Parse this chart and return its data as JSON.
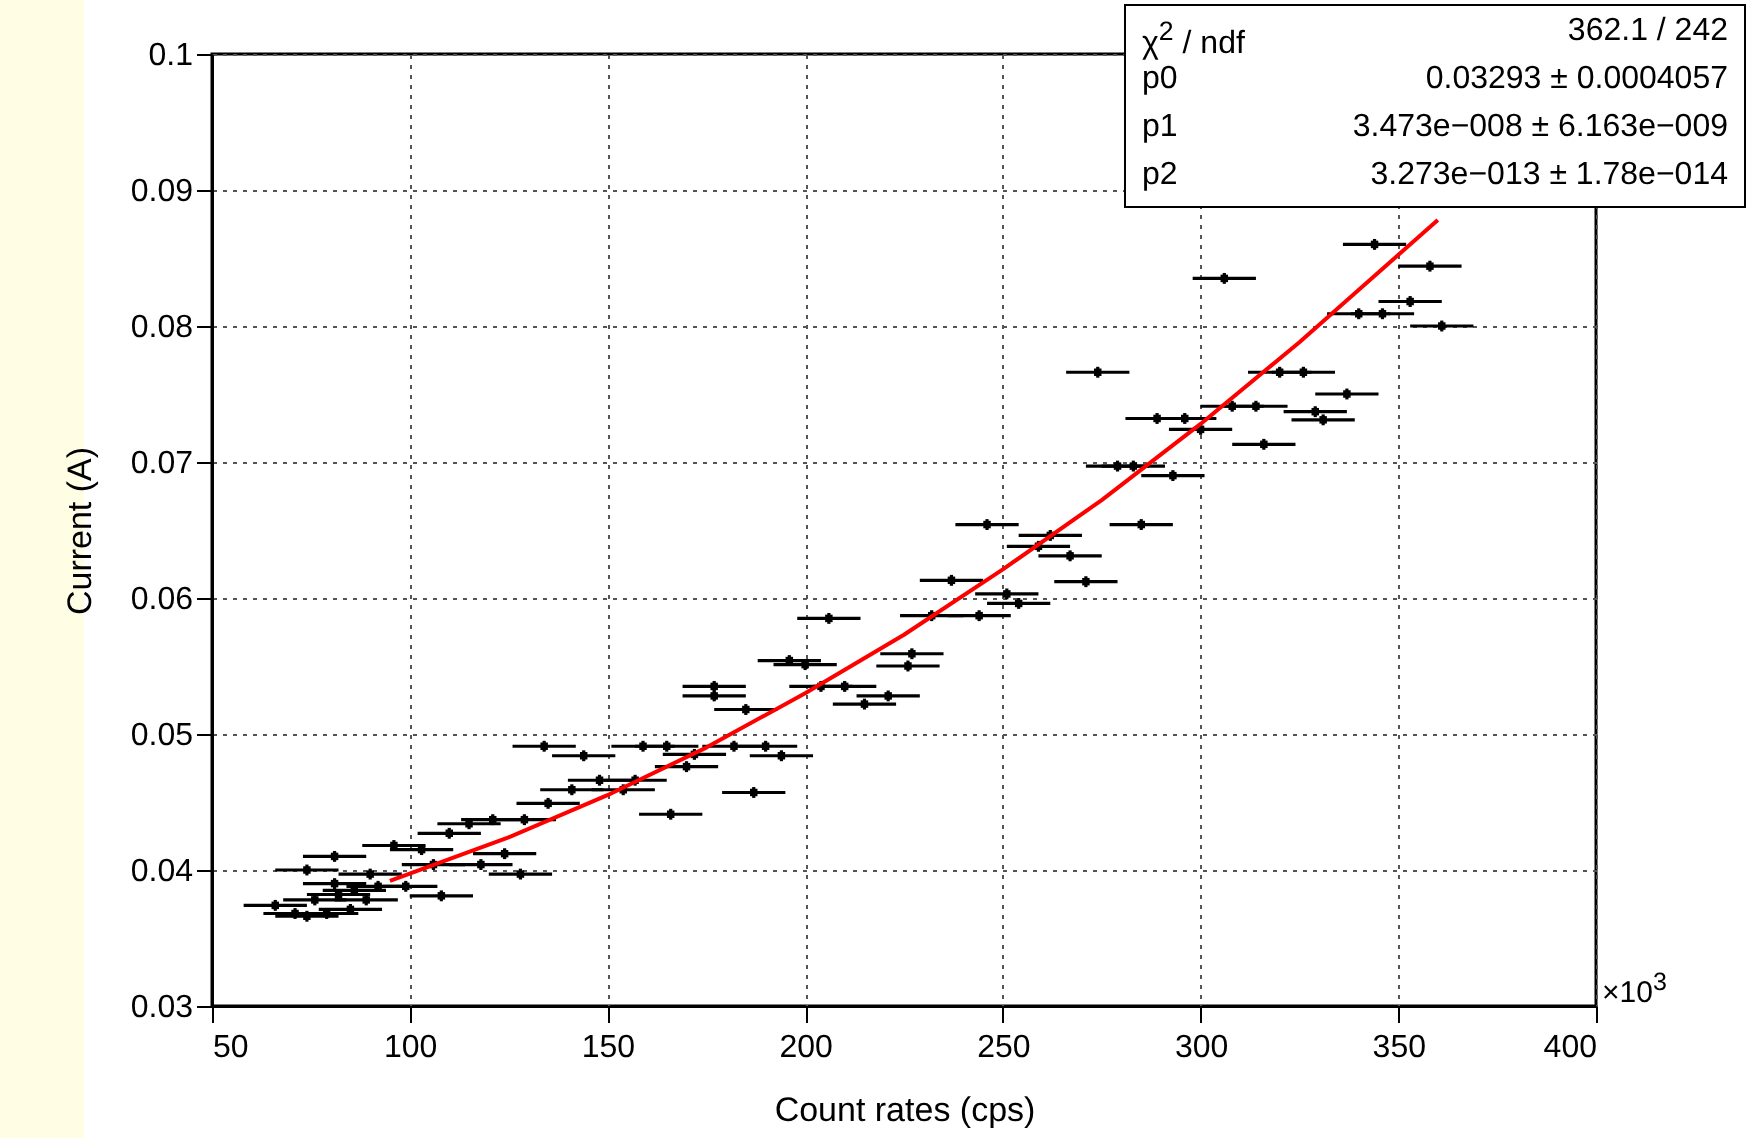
{
  "chart_data": {
    "type": "scatter",
    "xlabel": "Count rates (cps)",
    "ylabel": "Current (A)",
    "xlim": [
      50,
      400
    ],
    "xticks": [
      50,
      100,
      150,
      200,
      250,
      300,
      350,
      400
    ],
    "ylim": [
      0.03,
      0.1
    ],
    "yticks": [
      0.03,
      0.04,
      0.05,
      0.06,
      0.07,
      0.08,
      0.09,
      0.1
    ],
    "grid": true,
    "annotations": [
      "χ$^{2}$ / ndf",
      "362.1 / 242",
      "p0",
      "0.03293 ± 0.0004057",
      "p1",
      "3.473e−008 ± 6.163e−009",
      "p2",
      "3.273e−013 ± 1.78e−014",
      "×10$^{3}$"
    ],
    "series": [
      {
        "color": "#000000",
        "marker": "square",
        "x": [
          344,
          358,
          306,
          353,
          346,
          340,
          361,
          274,
          320,
          326,
          337,
          308,
          314,
          329,
          331,
          289,
          296,
          300,
          316,
          279,
          283,
          293,
          285,
          246,
          262,
          259,
          267,
          271,
          237,
          251,
          254,
          244,
          232,
          206,
          196,
          200,
          204,
          210,
          215,
          221,
          227,
          226,
          177,
          177,
          185,
          134,
          144,
          165,
          159,
          172,
          182,
          190,
          194,
          170,
          187,
          166,
          148,
          141,
          135,
          154,
          129,
          157,
          115,
          121,
          110,
          96,
          103,
          81,
          124,
          106,
          118,
          128,
          74,
          90,
          99,
          108,
          86,
          66,
          71,
          76,
          79,
          82,
          85,
          74,
          89,
          81,
          92
        ],
        "values": [
          0.086,
          0.0844,
          0.0835,
          0.0818,
          0.0809,
          0.0809,
          0.08,
          0.0766,
          0.0766,
          0.0766,
          0.075,
          0.0741,
          0.0741,
          0.0737,
          0.0731,
          0.0732,
          0.0732,
          0.0724,
          0.0713,
          0.0697,
          0.0697,
          0.069,
          0.0654,
          0.0654,
          0.0646,
          0.0638,
          0.0631,
          0.0612,
          0.0613,
          0.0603,
          0.0596,
          0.0587,
          0.0587,
          0.0585,
          0.0554,
          0.0551,
          0.0535,
          0.0535,
          0.0522,
          0.0528,
          0.0559,
          0.055,
          0.0535,
          0.0528,
          0.0518,
          0.0491,
          0.0484,
          0.0491,
          0.0491,
          0.0485,
          0.0491,
          0.0491,
          0.0484,
          0.0476,
          0.0457,
          0.0441,
          0.0466,
          0.0459,
          0.0449,
          0.0459,
          0.0437,
          0.0466,
          0.0434,
          0.0437,
          0.0427,
          0.0418,
          0.0415,
          0.041,
          0.0412,
          0.0404,
          0.0404,
          0.0397,
          0.04,
          0.0397,
          0.0388,
          0.0381,
          0.0385,
          0.0374,
          0.0368,
          0.0378,
          0.0368,
          0.0382,
          0.0371,
          0.0366,
          0.0378,
          0.039,
          0.0388
        ],
        "errors": [
          0.0004,
          0.0004,
          0.0004,
          0.0004,
          0.0004,
          0.0004,
          0.0004,
          0.0004,
          0.0004,
          0.0004,
          0.0004,
          0.0004,
          0.0004,
          0.0004,
          0.0004,
          0.0004,
          0.0004,
          0.0004,
          0.0004,
          0.0004,
          0.0004,
          0.0004,
          0.0004,
          0.0004,
          0.0004,
          0.0004,
          0.0004,
          0.0004,
          0.0004,
          0.0004,
          0.0004,
          0.0004,
          0.0004,
          0.0004,
          0.0004,
          0.0004,
          0.0004,
          0.0004,
          0.0004,
          0.0004,
          0.0004,
          0.0004,
          0.0004,
          0.0004,
          0.0004,
          0.0004,
          0.0004,
          0.0004,
          0.0004,
          0.0004,
          0.0004,
          0.0004,
          0.0004,
          0.0004,
          0.0004,
          0.0004,
          0.0004,
          0.0004,
          0.0004,
          0.0004,
          0.0004,
          0.0004,
          0.0004,
          0.0004,
          0.0004,
          0.0004,
          0.0004,
          0.0004,
          0.0004,
          0.0004,
          0.0004,
          0.0004,
          0.0004,
          0.0004,
          0.0004,
          0.0004,
          0.0004,
          0.0004,
          0.0004,
          0.0004,
          0.0004,
          0.0004,
          0.0004,
          0.0004,
          0.0004,
          0.0004,
          0.0004
        ],
        "xerrors": [
          8,
          8,
          8,
          8,
          8,
          8,
          8,
          8,
          8,
          8,
          8,
          8,
          8,
          8,
          8,
          8,
          8,
          8,
          8,
          8,
          8,
          8,
          8,
          8,
          8,
          8,
          8,
          8,
          8,
          8,
          8,
          8,
          8,
          8,
          8,
          8,
          8,
          8,
          8,
          8,
          8,
          8,
          8,
          8,
          8,
          8,
          8,
          8,
          8,
          8,
          8,
          8,
          8,
          8,
          8,
          8,
          8,
          8,
          8,
          8,
          8,
          8,
          8,
          8,
          8,
          8,
          8,
          8,
          8,
          8,
          8,
          8,
          8,
          8,
          8,
          8,
          8,
          8,
          8,
          8,
          8,
          8,
          8,
          8,
          8,
          8,
          8
        ]
      },
      {
        "type": "line",
        "color": "#ff0000",
        "x": [
          95,
          125,
          150,
          175,
          200,
          225,
          250,
          275,
          300,
          325,
          360
        ],
        "values": [
          0.0392,
          0.0424,
          0.0455,
          0.049,
          0.053,
          0.0573,
          0.0621,
          0.0672,
          0.0728,
          0.0788,
          0.0878
        ]
      }
    ]
  }
}
